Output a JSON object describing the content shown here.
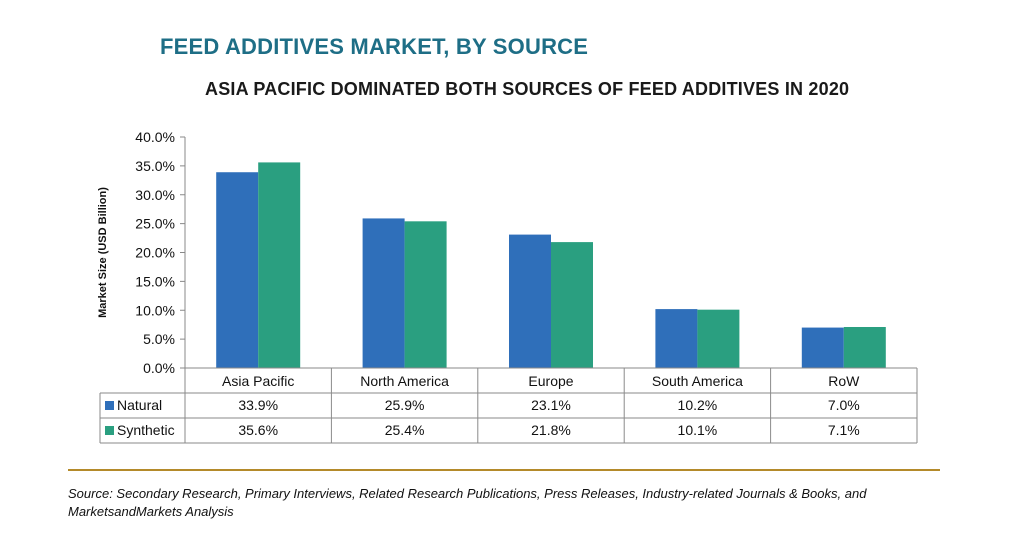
{
  "title": "FEED ADDITIVES MARKET, BY SOURCE",
  "subtitle": "ASIA PACIFIC DOMINATED BOTH SOURCES OF FEED ADDITIVES IN 2020",
  "source": "Source: Secondary Research, Primary Interviews, Related Research Publications, Press Releases, Industry-related Journals & Books, and MarketsandMarkets Analysis",
  "colors": {
    "natural": "#2f6fba",
    "synthetic": "#2a9f80",
    "title": "#1e6e86",
    "rule": "#b48a2a"
  },
  "chart_data": {
    "type": "bar",
    "title": "",
    "xlabel": "",
    "ylabel": "Market Size (USD Billion)",
    "ylim": [
      0,
      40
    ],
    "yticks": [
      "0.0%",
      "5.0%",
      "10.0%",
      "15.0%",
      "20.0%",
      "25.0%",
      "30.0%",
      "35.0%",
      "40.0%"
    ],
    "grid": false,
    "legend": "data-table",
    "categories": [
      "Asia Pacific",
      "North America",
      "Europe",
      "South America",
      "RoW"
    ],
    "series": [
      {
        "name": "Natural",
        "values": [
          33.9,
          25.9,
          23.1,
          10.2,
          7.0
        ],
        "labels": [
          "33.9%",
          "25.9%",
          "23.1%",
          "10.2%",
          "7.0%"
        ]
      },
      {
        "name": "Synthetic",
        "values": [
          35.6,
          25.4,
          21.8,
          10.1,
          7.1
        ],
        "labels": [
          "35.6%",
          "25.4%",
          "21.8%",
          "10.1%",
          "7.1%"
        ]
      }
    ]
  }
}
